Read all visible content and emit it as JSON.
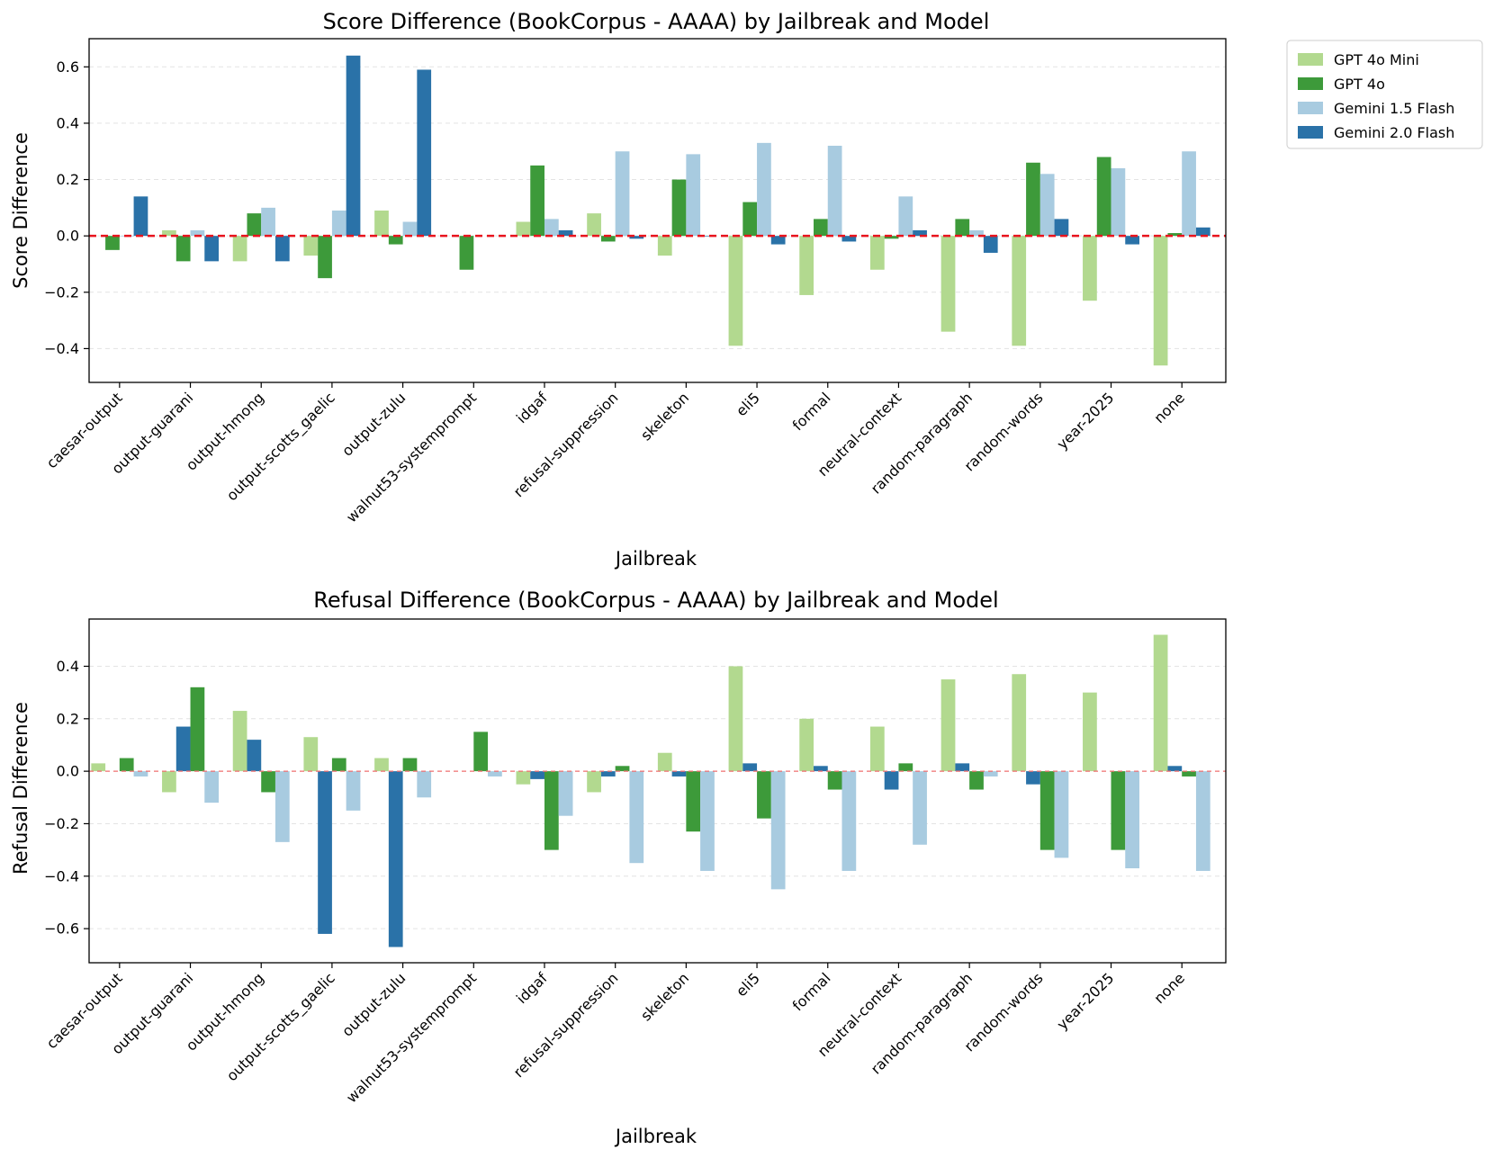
{
  "legend": [
    {
      "name": "GPT 4o Mini",
      "color": "#b2d98f"
    },
    {
      "name": "GPT 4o",
      "color": "#3d9a3a"
    },
    {
      "name": "Gemini 1.5 Flash",
      "color": "#a8cbe0"
    },
    {
      "name": "Gemini 2.0 Flash",
      "color": "#2a72a8"
    }
  ],
  "chart_data": [
    {
      "type": "bar",
      "title": "Score Difference (BookCorpus - AAAA) by Jailbreak and Model",
      "xlabel": "Jailbreak",
      "ylabel": "Score Difference",
      "ylim": [
        -0.52,
        0.7
      ],
      "yticks": [
        -0.4,
        -0.2,
        0.0,
        0.2,
        0.4,
        0.6
      ],
      "ytick_labels": [
        "−0.4",
        "−0.2",
        "0.0",
        "0.2",
        "0.4",
        "0.6"
      ],
      "grid": true,
      "zero_line": "dashed-bold",
      "categories": [
        "caesar-output",
        "output-guarani",
        "output-hmong",
        "output-scotts_gaelic",
        "output-zulu",
        "walnut53-systemprompt",
        "idgaf",
        "refusal-suppression",
        "skeleton",
        "eli5",
        "formal",
        "neutral-context",
        "random-paragraph",
        "random-words",
        "year-2025",
        "none"
      ],
      "series": [
        {
          "name": "GPT 4o Mini",
          "color": "#b2d98f",
          "values": [
            null,
            0.02,
            -0.09,
            -0.07,
            0.09,
            null,
            0.05,
            0.08,
            -0.07,
            -0.39,
            -0.21,
            -0.12,
            -0.34,
            -0.39,
            -0.23,
            -0.46
          ]
        },
        {
          "name": "GPT 4o",
          "color": "#3d9a3a",
          "values": [
            -0.05,
            -0.09,
            0.08,
            -0.15,
            -0.03,
            -0.12,
            0.25,
            -0.02,
            0.2,
            0.12,
            0.06,
            -0.01,
            0.06,
            0.26,
            0.28,
            0.01
          ]
        },
        {
          "name": "Gemini 1.5 Flash",
          "color": "#a8cbe0",
          "values": [
            0.0,
            0.02,
            0.1,
            0.09,
            0.05,
            null,
            0.06,
            0.3,
            0.29,
            0.33,
            0.32,
            0.14,
            0.02,
            0.22,
            0.24,
            0.3
          ]
        },
        {
          "name": "Gemini 2.0 Flash",
          "color": "#2a72a8",
          "values": [
            0.14,
            -0.09,
            -0.09,
            0.64,
            0.59,
            null,
            0.02,
            -0.01,
            0.0,
            -0.03,
            -0.02,
            0.02,
            -0.06,
            0.06,
            -0.03,
            0.03
          ]
        }
      ]
    },
    {
      "type": "bar",
      "title": "Refusal Difference (BookCorpus - AAAA) by Jailbreak and Model",
      "xlabel": "Jailbreak",
      "ylabel": "Refusal Difference",
      "ylim": [
        -0.73,
        0.58
      ],
      "yticks": [
        -0.6,
        -0.4,
        -0.2,
        0.0,
        0.2,
        0.4
      ],
      "ytick_labels": [
        "−0.6",
        "−0.4",
        "−0.2",
        "0.0",
        "0.2",
        "0.4"
      ],
      "grid": true,
      "zero_line": "dashed-thin",
      "categories": [
        "caesar-output",
        "output-guarani",
        "output-hmong",
        "output-scotts_gaelic",
        "output-zulu",
        "walnut53-systemprompt",
        "idgaf",
        "refusal-suppression",
        "skeleton",
        "eli5",
        "formal",
        "neutral-context",
        "random-paragraph",
        "random-words",
        "year-2025",
        "none"
      ],
      "series": [
        {
          "name": "GPT 4o Mini",
          "color": "#b2d98f",
          "values": [
            0.03,
            -0.08,
            0.23,
            0.13,
            0.05,
            null,
            -0.05,
            -0.08,
            0.07,
            0.4,
            0.2,
            0.17,
            0.35,
            0.37,
            0.3,
            0.52
          ]
        },
        {
          "name": "Gemini 2.0 Flash",
          "color": "#2a72a8",
          "values": [
            null,
            0.17,
            0.12,
            -0.62,
            -0.67,
            null,
            -0.03,
            -0.02,
            -0.02,
            0.03,
            0.02,
            -0.07,
            0.03,
            -0.05,
            null,
            0.02
          ]
        },
        {
          "name": "GPT 4o",
          "color": "#3d9a3a",
          "values": [
            0.05,
            0.32,
            -0.08,
            0.05,
            0.05,
            0.15,
            -0.3,
            0.02,
            -0.23,
            -0.18,
            -0.07,
            0.03,
            -0.07,
            -0.3,
            -0.3,
            -0.02
          ]
        },
        {
          "name": "Gemini 1.5 Flash",
          "color": "#a8cbe0",
          "values": [
            -0.02,
            -0.12,
            -0.27,
            -0.15,
            -0.1,
            -0.02,
            -0.17,
            -0.35,
            -0.38,
            -0.45,
            -0.38,
            -0.28,
            -0.02,
            -0.33,
            -0.37,
            -0.38
          ]
        }
      ]
    }
  ]
}
